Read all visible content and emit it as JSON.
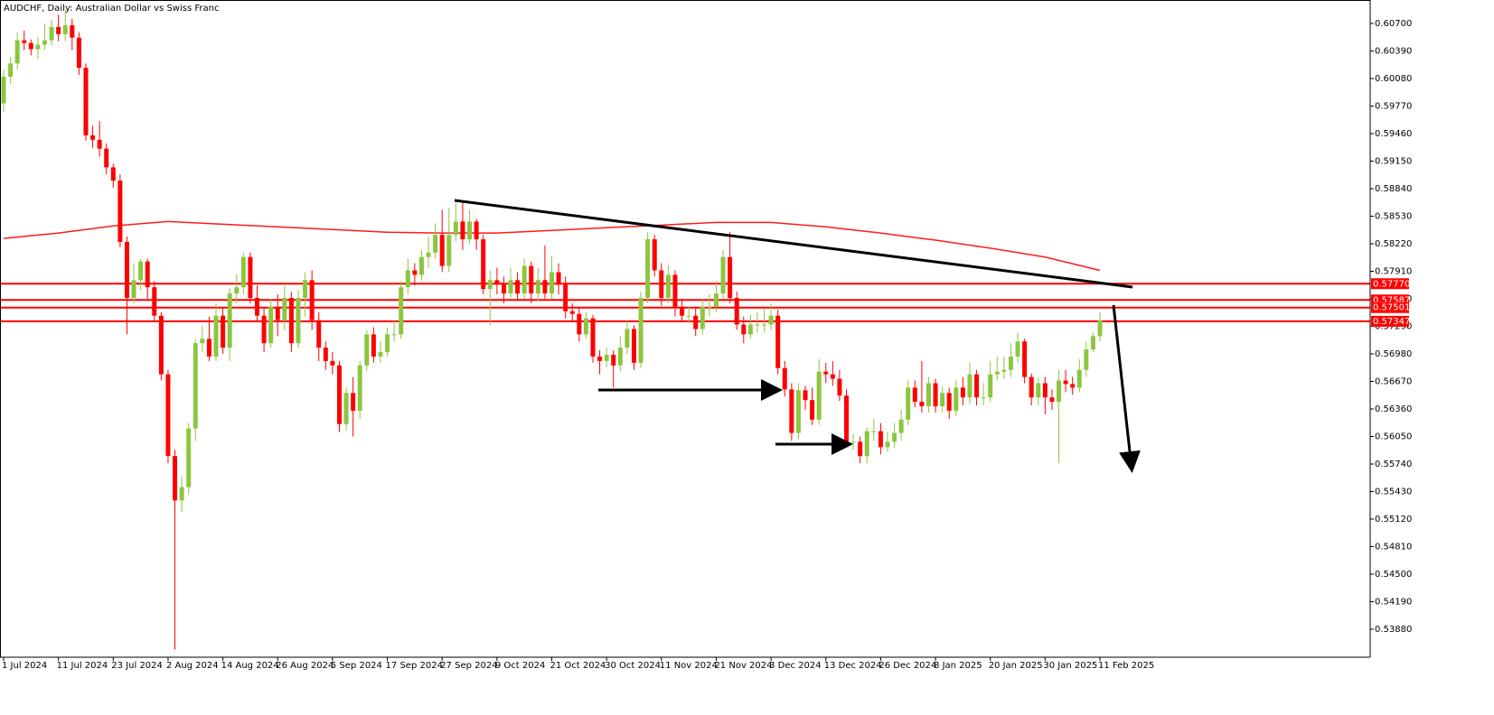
{
  "chart_data": {
    "type": "candlestick",
    "title": "AUDCHF, Daily:  Australian Dollar vs Swiss Franc",
    "categories": [
      "1 Jul 2024",
      null,
      null,
      null,
      null,
      null,
      null,
      null,
      "11 Jul 2024",
      null,
      null,
      null,
      null,
      null,
      null,
      null,
      "23 Jul 2024",
      null,
      null,
      null,
      null,
      null,
      null,
      null,
      "2 Aug 2024",
      null,
      null,
      null,
      null,
      null,
      null,
      null,
      "14 Aug 2024",
      null,
      null,
      null,
      null,
      null,
      null,
      null,
      "26 Aug 2024",
      null,
      null,
      null,
      null,
      null,
      null,
      null,
      "5 Sep 2024",
      null,
      null,
      null,
      null,
      null,
      null,
      null,
      "17 Sep 2024",
      null,
      null,
      null,
      null,
      null,
      null,
      null,
      "27 Sep 2024",
      null,
      null,
      null,
      null,
      null,
      null,
      null,
      "9 Oct 2024",
      null,
      null,
      null,
      null,
      null,
      null,
      null,
      "21 Oct 2024",
      null,
      null,
      null,
      null,
      null,
      null,
      null,
      "30 Oct 2024",
      null,
      null,
      null,
      null,
      null,
      null,
      null,
      "11 Nov 2024",
      null,
      null,
      null,
      null,
      null,
      null,
      null,
      "21 Nov 2024",
      null,
      null,
      null,
      null,
      null,
      null,
      null,
      "3 Dec 2024",
      null,
      null,
      null,
      null,
      null,
      null,
      null,
      "13 Dec 2024",
      null,
      null,
      null,
      null,
      null,
      null,
      null,
      "26 Dec 2024",
      null,
      null,
      null,
      null,
      null,
      null,
      null,
      "8 Jan 2025",
      null,
      null,
      null,
      null,
      null,
      null,
      null,
      "20 Jan 2025",
      null,
      null,
      null,
      null,
      null,
      null,
      null,
      "30 Jan 2025",
      null,
      null,
      null,
      null,
      null,
      null,
      null,
      "11 Feb 2025"
    ],
    "open": [
      0.598,
      0.601,
      0.6025,
      0.6051,
      0.6048,
      0.6041,
      0.6046,
      0.6051,
      0.6066,
      0.6058,
      0.6068,
      0.6054,
      0.602,
      0.5944,
      0.5939,
      0.5929,
      0.5908,
      0.5893,
      0.5824,
      0.5761,
      0.5781,
      0.5802,
      0.5773,
      0.5741,
      0.5675,
      0.5583,
      0.5533,
      0.5548,
      0.5614,
      0.571,
      0.5715,
      0.5695,
      0.5741,
      0.5705,
      0.5766,
      0.5773,
      0.5807,
      0.5761,
      0.5741,
      0.571,
      0.5751,
      0.5736,
      0.5761,
      0.571,
      0.5761,
      0.5781,
      0.5736,
      0.5705,
      0.569,
      0.5685,
      0.5619,
      0.5654,
      0.5634,
      0.5685,
      0.572,
      0.5695,
      0.57,
      0.572,
      0.572,
      0.5773,
      0.5792,
      0.5787,
      0.5807,
      0.5812,
      0.5832,
      0.5797,
      0.5832,
      0.5847,
      0.5827,
      0.5847,
      0.5827,
      0.5771,
      0.5781,
      0.5776,
      0.5766,
      0.5781,
      0.5766,
      0.5797,
      0.5766,
      0.5781,
      0.5766,
      0.579,
      0.5776,
      0.5746,
      0.5743,
      0.572,
      0.5738,
      0.5695,
      0.569,
      0.5697,
      0.5685,
      0.5705,
      0.5726,
      0.5688,
      0.5761,
      0.5827,
      0.5792,
      0.5761,
      0.5787,
      0.5751,
      0.5741,
      0.5741,
      0.5726,
      0.5751,
      0.5751,
      0.5766,
      0.5807,
      0.5761,
      0.5731,
      0.572,
      0.5731,
      0.5731,
      0.5731,
      0.5741,
      0.5682,
      0.5658,
      0.5609,
      0.5657,
      0.5646,
      0.5624,
      0.5678,
      0.5675,
      0.567,
      0.5651,
      0.5599,
      0.5599,
      0.5583,
      0.5611,
      0.5611,
      0.5593,
      0.5599,
      0.5609,
      0.5624,
      0.566,
      0.5644,
      0.5639,
      0.5665,
      0.5639,
      0.5654,
      0.5634,
      0.566,
      0.5649,
      0.5675,
      0.5649,
      0.5649,
      0.5675,
      0.5678,
      0.568,
      0.5695,
      0.5712,
      0.5672,
      0.5649,
      0.5665,
      0.5649,
      0.5644,
      0.5668,
      0.5664,
      0.566,
      0.568,
      0.5703,
      0.5718
    ],
    "high": [
      0.6018,
      0.6032,
      0.606,
      0.6062,
      0.6052,
      0.6055,
      0.607,
      0.6074,
      0.608,
      0.6085,
      0.6075,
      0.606,
      0.6025,
      0.5955,
      0.596,
      0.5935,
      0.5912,
      0.59,
      0.583,
      0.58,
      0.5805,
      0.5805,
      0.578,
      0.5745,
      0.568,
      0.559,
      0.556,
      0.562,
      0.5715,
      0.573,
      0.574,
      0.5755,
      0.575,
      0.5772,
      0.5788,
      0.5812,
      0.5812,
      0.5775,
      0.575,
      0.576,
      0.5765,
      0.5775,
      0.5768,
      0.577,
      0.579,
      0.5792,
      0.5745,
      0.5712,
      0.57,
      0.569,
      0.566,
      0.5672,
      0.569,
      0.5725,
      0.5728,
      0.5712,
      0.5728,
      0.5735,
      0.578,
      0.5805,
      0.58,
      0.5815,
      0.583,
      0.5845,
      0.586,
      0.5862,
      0.5868,
      0.587,
      0.586,
      0.585,
      0.5832,
      0.5792,
      0.5795,
      0.5785,
      0.5795,
      0.579,
      0.5805,
      0.5802,
      0.5795,
      0.582,
      0.5808,
      0.58,
      0.5785,
      0.5755,
      0.575,
      0.5745,
      0.5742,
      0.5702,
      0.5705,
      0.5702,
      0.5718,
      0.5735,
      0.573,
      0.5768,
      0.5835,
      0.5832,
      0.58,
      0.5798,
      0.5792,
      0.576,
      0.5752,
      0.575,
      0.576,
      0.5765,
      0.578,
      0.5815,
      0.5835,
      0.5768,
      0.574,
      0.5742,
      0.5745,
      0.5748,
      0.5755,
      0.5748,
      0.569,
      0.5665,
      0.5665,
      0.5662,
      0.566,
      0.5692,
      0.5688,
      0.569,
      0.568,
      0.5658,
      0.5608,
      0.5605,
      0.5615,
      0.5625,
      0.562,
      0.561,
      0.562,
      0.5635,
      0.5668,
      0.5668,
      0.569,
      0.5672,
      0.567,
      0.5662,
      0.566,
      0.5668,
      0.5672,
      0.5688,
      0.568,
      0.5665,
      0.569,
      0.5695,
      0.5695,
      0.571,
      0.5722,
      0.5715,
      0.5676,
      0.5672,
      0.5672,
      0.5658,
      0.568,
      0.568,
      0.5672,
      0.5692,
      0.5712,
      0.5722,
      0.5745
    ],
    "low": [
      0.597,
      0.6002,
      0.6018,
      0.604,
      0.6034,
      0.603,
      0.604,
      0.6045,
      0.605,
      0.605,
      0.604,
      0.6012,
      0.5938,
      0.593,
      0.592,
      0.59,
      0.5885,
      0.5818,
      0.572,
      0.5755,
      0.577,
      0.576,
      0.5735,
      0.5668,
      0.5575,
      0.5365,
      0.552,
      0.554,
      0.56,
      0.57,
      0.569,
      0.569,
      0.5698,
      0.569,
      0.5755,
      0.5765,
      0.5755,
      0.5735,
      0.57,
      0.5705,
      0.5718,
      0.5725,
      0.57,
      0.5705,
      0.574,
      0.5725,
      0.569,
      0.568,
      0.5675,
      0.561,
      0.5612,
      0.5605,
      0.5625,
      0.5678,
      0.5688,
      0.5688,
      0.5695,
      0.5712,
      0.5715,
      0.5765,
      0.5775,
      0.578,
      0.5795,
      0.5805,
      0.579,
      0.579,
      0.5825,
      0.5815,
      0.5822,
      0.5815,
      0.5765,
      0.573,
      0.5765,
      0.5755,
      0.576,
      0.5758,
      0.576,
      0.5755,
      0.5758,
      0.576,
      0.576,
      0.5765,
      0.5738,
      0.5735,
      0.5712,
      0.5715,
      0.5688,
      0.5675,
      0.5683,
      0.566,
      0.5678,
      0.5698,
      0.568,
      0.5682,
      0.5755,
      0.5785,
      0.5752,
      0.5755,
      0.574,
      0.5735,
      0.5732,
      0.5718,
      0.572,
      0.574,
      0.5745,
      0.576,
      0.5755,
      0.5725,
      0.571,
      0.5715,
      0.5722,
      0.5722,
      0.5725,
      0.5675,
      0.565,
      0.56,
      0.5602,
      0.5635,
      0.5618,
      0.5618,
      0.5665,
      0.5662,
      0.5645,
      0.5595,
      0.559,
      0.5575,
      0.5575,
      0.56,
      0.5585,
      0.5588,
      0.5592,
      0.56,
      0.5618,
      0.5638,
      0.5632,
      0.5632,
      0.5632,
      0.5632,
      0.5625,
      0.5628,
      0.564,
      0.5642,
      0.564,
      0.564,
      0.5644,
      0.5668,
      0.567,
      0.5672,
      0.5688,
      0.5665,
      0.564,
      0.564,
      0.563,
      0.5635,
      0.5575,
      0.5655,
      0.5652,
      0.5655,
      0.5672,
      0.57,
      0.5712
    ],
    "close": [
      0.601,
      0.6025,
      0.6051,
      0.6048,
      0.6041,
      0.6046,
      0.6051,
      0.6066,
      0.6058,
      0.6068,
      0.6054,
      0.602,
      0.5944,
      0.5939,
      0.5929,
      0.5908,
      0.5893,
      0.5824,
      0.5761,
      0.5781,
      0.5802,
      0.5773,
      0.5741,
      0.5675,
      0.5583,
      0.5533,
      0.5548,
      0.5614,
      0.571,
      0.5715,
      0.5695,
      0.5741,
      0.5705,
      0.5766,
      0.5773,
      0.5807,
      0.5761,
      0.5741,
      0.571,
      0.5751,
      0.5736,
      0.5761,
      0.571,
      0.5761,
      0.5781,
      0.5736,
      0.5705,
      0.569,
      0.5685,
      0.5619,
      0.5654,
      0.5634,
      0.5685,
      0.572,
      0.5695,
      0.57,
      0.572,
      0.572,
      0.5773,
      0.5792,
      0.5787,
      0.5807,
      0.5812,
      0.5832,
      0.5797,
      0.5832,
      0.5847,
      0.5827,
      0.5847,
      0.5827,
      0.5771,
      0.5781,
      0.5776,
      0.5766,
      0.5781,
      0.5766,
      0.5797,
      0.5766,
      0.5781,
      0.5766,
      0.579,
      0.5776,
      0.5746,
      0.5743,
      0.572,
      0.5738,
      0.5695,
      0.569,
      0.5697,
      0.5685,
      0.5705,
      0.5726,
      0.5688,
      0.5761,
      0.5827,
      0.5792,
      0.5761,
      0.5787,
      0.5751,
      0.5741,
      0.5741,
      0.5726,
      0.5751,
      0.5751,
      0.5766,
      0.5807,
      0.5761,
      0.5731,
      0.572,
      0.5731,
      0.5731,
      0.5731,
      0.5741,
      0.5682,
      0.5658,
      0.5609,
      0.5657,
      0.5646,
      0.5624,
      0.5678,
      0.5675,
      0.567,
      0.5651,
      0.5599,
      0.5599,
      0.5583,
      0.5611,
      0.5611,
      0.5593,
      0.5599,
      0.5609,
      0.5624,
      0.566,
      0.5644,
      0.5639,
      0.5665,
      0.5639,
      0.5654,
      0.5634,
      0.566,
      0.5649,
      0.5675,
      0.5649,
      0.5649,
      0.5675,
      0.5678,
      0.568,
      0.5695,
      0.5712,
      0.5672,
      0.5649,
      0.5665,
      0.5649,
      0.5644,
      0.5668,
      0.5664,
      0.566,
      0.568,
      0.5703,
      0.5718,
      0.5736
    ],
    "color_up": "#8cc63f",
    "color_down": "#ff0000",
    "moving_average": {
      "color": "#ff1a1a",
      "x": [
        0,
        8,
        16,
        24,
        32,
        40,
        48,
        56,
        64,
        72,
        80,
        88,
        96,
        104,
        112,
        120,
        128,
        136,
        144,
        152,
        160
      ],
      "values": [
        0.5828,
        0.5834,
        0.5842,
        0.5847,
        0.5844,
        0.5841,
        0.5838,
        0.5835,
        0.5834,
        0.5834,
        0.5837,
        0.584,
        0.5843,
        0.5846,
        0.5846,
        0.5841,
        0.5834,
        0.5826,
        0.5817,
        0.5807,
        0.5792
      ]
    },
    "levels": [
      {
        "value": 0.5777,
        "label": "0.57770"
      },
      {
        "value": 0.57587,
        "label": "0.57587"
      },
      {
        "value": 0.57501,
        "label": "0.57501"
      },
      {
        "value": 0.57347,
        "label": "0.57347"
      }
    ],
    "levels_color": "#ff0000",
    "ylim": [
      0.53565,
      0.60964
    ],
    "yticks": [
      {
        "value": 0.607,
        "label": "0.60700"
      },
      {
        "value": 0.6039,
        "label": "0.60390"
      },
      {
        "value": 0.6008,
        "label": "0.60080"
      },
      {
        "value": 0.5977,
        "label": "0.59770"
      },
      {
        "value": 0.5946,
        "label": "0.59460"
      },
      {
        "value": 0.5915,
        "label": "0.59150"
      },
      {
        "value": 0.5884,
        "label": "0.58840"
      },
      {
        "value": 0.5853,
        "label": "0.58530"
      },
      {
        "value": 0.5822,
        "label": "0.58220"
      },
      {
        "value": 0.5791,
        "label": "0.57910"
      },
      {
        "value": 0.576,
        "label": "0.57600"
      },
      {
        "value": 0.5729,
        "label": "0.57290"
      },
      {
        "value": 0.5698,
        "label": "0.56980"
      },
      {
        "value": 0.5667,
        "label": "0.56670"
      },
      {
        "value": 0.5636,
        "label": "0.56360"
      },
      {
        "value": 0.5605,
        "label": "0.56050"
      },
      {
        "value": 0.5574,
        "label": "0.55740"
      },
      {
        "value": 0.5543,
        "label": "0.55430"
      },
      {
        "value": 0.5512,
        "label": "0.55120"
      },
      {
        "value": 0.5481,
        "label": "0.54810"
      },
      {
        "value": 0.545,
        "label": "0.54500"
      },
      {
        "value": 0.5419,
        "label": "0.54190"
      },
      {
        "value": 0.5388,
        "label": "0.53880"
      }
    ]
  }
}
